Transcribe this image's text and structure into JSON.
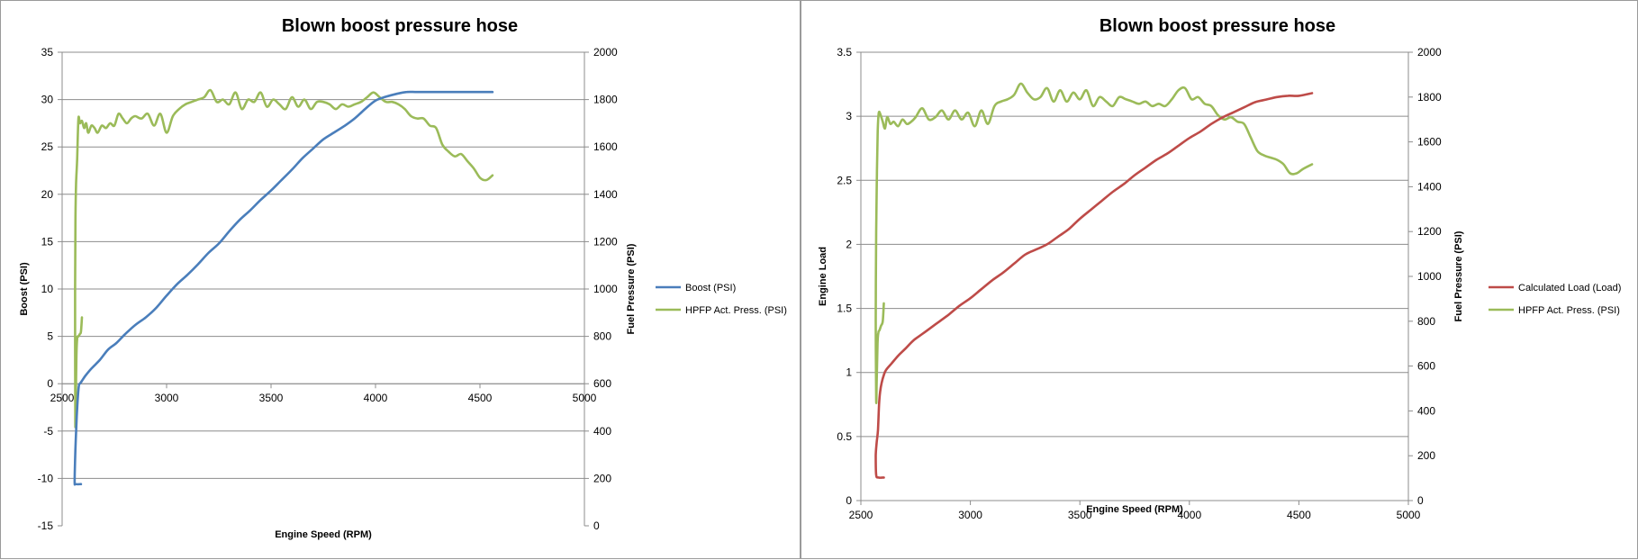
{
  "chart_data": [
    {
      "type": "line",
      "title": "Blown boost pressure hose",
      "xlabel": "Engine Speed (RPM)",
      "ylabel": "Boost (PSI)",
      "y2label": "Fuel Pressure (PSI)",
      "xlim": [
        2500,
        5000
      ],
      "xticks": [
        2500,
        3000,
        3500,
        4000,
        4500,
        5000
      ],
      "ylim": [
        -15,
        35
      ],
      "yticks": [
        -15,
        -10,
        -5,
        0,
        5,
        10,
        15,
        20,
        25,
        30,
        35
      ],
      "y2lim": [
        0,
        2000
      ],
      "y2ticks": [
        0,
        200,
        400,
        600,
        800,
        1000,
        1200,
        1400,
        1600,
        1800,
        2000
      ],
      "grid": "horizontal",
      "legend": "right",
      "series": [
        {
          "name": "Boost (PSI)",
          "axis": "left",
          "color": "#4a7ebb",
          "x": [
            2590,
            2565,
            2560,
            2562,
            2565,
            2570,
            2575,
            2580,
            2585,
            2595,
            2610,
            2640,
            2680,
            2720,
            2760,
            2800,
            2850,
            2900,
            2950,
            3000,
            3050,
            3100,
            3150,
            3200,
            3250,
            3300,
            3350,
            3400,
            3450,
            3500,
            3550,
            3600,
            3650,
            3700,
            3750,
            3800,
            3850,
            3900,
            3950,
            4000,
            4050,
            4100,
            4150,
            4200,
            4300,
            4400,
            4500,
            4560
          ],
          "y": [
            -10.6,
            -10.6,
            -10.4,
            -8,
            -6,
            -3.5,
            -1.5,
            -0.2,
            0,
            0.3,
            0.8,
            1.6,
            2.5,
            3.6,
            4.3,
            5.2,
            6.2,
            7.0,
            8.0,
            9.3,
            10.5,
            11.5,
            12.6,
            13.8,
            14.8,
            16.1,
            17.3,
            18.3,
            19.4,
            20.4,
            21.5,
            22.6,
            23.8,
            24.8,
            25.8,
            26.5,
            27.2,
            28.0,
            29.0,
            29.9,
            30.3,
            30.6,
            30.8,
            30.8,
            30.8,
            30.8,
            30.8,
            30.8
          ],
          "style": "smooth"
        },
        {
          "name": "HPFP Act. Press. (PSI)",
          "axis": "right",
          "color": "#9bbb59",
          "x": [
            2595,
            2590,
            2585,
            2578,
            2572,
            2568,
            2565,
            2563,
            2562,
            2564,
            2567,
            2572,
            2578,
            2585,
            2595,
            2605,
            2615,
            2625,
            2640,
            2655,
            2670,
            2690,
            2710,
            2730,
            2750,
            2770,
            2790,
            2810,
            2830,
            2850,
            2880,
            2910,
            2940,
            2970,
            3000,
            3030,
            3060,
            3090,
            3120,
            3150,
            3180,
            3210,
            3240,
            3270,
            3300,
            3330,
            3360,
            3390,
            3420,
            3450,
            3480,
            3510,
            3540,
            3570,
            3600,
            3630,
            3660,
            3690,
            3720,
            3750,
            3780,
            3810,
            3840,
            3870,
            3900,
            3930,
            3960,
            3990,
            4020,
            4050,
            4080,
            4110,
            4140,
            4170,
            4200,
            4230,
            4260,
            4290,
            4320,
            4350,
            4380,
            4410,
            4440,
            4470,
            4500,
            4530,
            4560
          ],
          "y": [
            880,
            820,
            810,
            800,
            790,
            700,
            500,
            450,
            1000,
            1300,
            1450,
            1550,
            1720,
            1700,
            1710,
            1680,
            1700,
            1660,
            1690,
            1680,
            1660,
            1690,
            1680,
            1700,
            1690,
            1740,
            1720,
            1700,
            1720,
            1730,
            1720,
            1740,
            1690,
            1740,
            1660,
            1730,
            1760,
            1780,
            1790,
            1800,
            1810,
            1840,
            1790,
            1800,
            1780,
            1830,
            1760,
            1800,
            1790,
            1830,
            1770,
            1800,
            1780,
            1760,
            1810,
            1770,
            1800,
            1760,
            1790,
            1790,
            1780,
            1760,
            1780,
            1770,
            1780,
            1790,
            1810,
            1830,
            1810,
            1790,
            1790,
            1780,
            1760,
            1730,
            1720,
            1720,
            1690,
            1680,
            1610,
            1580,
            1560,
            1570,
            1540,
            1510,
            1470,
            1460,
            1480
          ]
        }
      ]
    },
    {
      "type": "line",
      "title": "Blown boost pressure hose",
      "xlabel": "Engine Speed (RPM)",
      "ylabel": "Engine Load",
      "y2label": "Fuel Pressure (PSI)",
      "xlim": [
        2500,
        5000
      ],
      "xticks": [
        2500,
        3000,
        3500,
        4000,
        4500,
        5000
      ],
      "ylim": [
        0,
        3.5
      ],
      "yticks": [
        0,
        0.5,
        1,
        1.5,
        2,
        2.5,
        3,
        3.5
      ],
      "y2lim": [
        0,
        2000
      ],
      "y2ticks": [
        0,
        200,
        400,
        600,
        800,
        1000,
        1200,
        1400,
        1600,
        1800,
        2000
      ],
      "grid": "horizontal",
      "legend": "right",
      "series": [
        {
          "name": "Calculated Load (Load)",
          "axis": "left",
          "color": "#be4b48",
          "x": [
            2605,
            2580,
            2570,
            2568,
            2572,
            2578,
            2583,
            2588,
            2595,
            2605,
            2615,
            2640,
            2670,
            2700,
            2740,
            2780,
            2820,
            2860,
            2900,
            2950,
            3000,
            3050,
            3100,
            3150,
            3200,
            3250,
            3300,
            3350,
            3400,
            3450,
            3500,
            3550,
            3600,
            3650,
            3700,
            3750,
            3800,
            3850,
            3900,
            3950,
            4000,
            4050,
            4100,
            4150,
            4200,
            4250,
            4300,
            4350,
            4400,
            4450,
            4500,
            4560
          ],
          "y": [
            0.18,
            0.18,
            0.2,
            0.35,
            0.45,
            0.55,
            0.75,
            0.85,
            0.92,
            0.98,
            1.02,
            1.07,
            1.13,
            1.18,
            1.25,
            1.3,
            1.35,
            1.4,
            1.45,
            1.52,
            1.58,
            1.65,
            1.72,
            1.78,
            1.85,
            1.92,
            1.96,
            2.0,
            2.06,
            2.12,
            2.2,
            2.27,
            2.34,
            2.41,
            2.47,
            2.54,
            2.6,
            2.66,
            2.71,
            2.77,
            2.83,
            2.88,
            2.94,
            2.99,
            3.03,
            3.07,
            3.11,
            3.13,
            3.15,
            3.16,
            3.16,
            3.18
          ]
        },
        {
          "name": "HPFP Act. Press. (PSI)",
          "axis": "right",
          "color": "#9bbb59",
          "x": [
            2605,
            2600,
            2592,
            2585,
            2580,
            2576,
            2572,
            2570,
            2568,
            2570,
            2573,
            2577,
            2582,
            2590,
            2600,
            2610,
            2620,
            2635,
            2650,
            2670,
            2690,
            2710,
            2730,
            2750,
            2780,
            2810,
            2840,
            2870,
            2900,
            2930,
            2960,
            2990,
            3020,
            3050,
            3080,
            3110,
            3140,
            3170,
            3200,
            3230,
            3260,
            3290,
            3320,
            3350,
            3380,
            3410,
            3440,
            3470,
            3500,
            3530,
            3560,
            3590,
            3620,
            3650,
            3680,
            3710,
            3740,
            3770,
            3800,
            3830,
            3860,
            3890,
            3920,
            3950,
            3980,
            4010,
            4040,
            4070,
            4100,
            4130,
            4160,
            4190,
            4220,
            4250,
            4280,
            4310,
            4340,
            4370,
            4400,
            4430,
            4460,
            4490,
            4520,
            4560
          ],
          "y": [
            880,
            800,
            780,
            760,
            750,
            700,
            520,
            450,
            800,
            1200,
            1450,
            1650,
            1730,
            1720,
            1690,
            1660,
            1710,
            1680,
            1690,
            1670,
            1700,
            1680,
            1690,
            1710,
            1750,
            1700,
            1710,
            1740,
            1700,
            1740,
            1700,
            1730,
            1670,
            1740,
            1680,
            1760,
            1780,
            1790,
            1810,
            1860,
            1820,
            1790,
            1800,
            1840,
            1780,
            1830,
            1780,
            1820,
            1790,
            1830,
            1760,
            1800,
            1780,
            1760,
            1800,
            1790,
            1780,
            1770,
            1780,
            1760,
            1770,
            1760,
            1790,
            1830,
            1840,
            1790,
            1800,
            1770,
            1760,
            1720,
            1700,
            1710,
            1690,
            1680,
            1620,
            1560,
            1540,
            1530,
            1520,
            1500,
            1460,
            1460,
            1480,
            1500
          ]
        }
      ]
    }
  ]
}
